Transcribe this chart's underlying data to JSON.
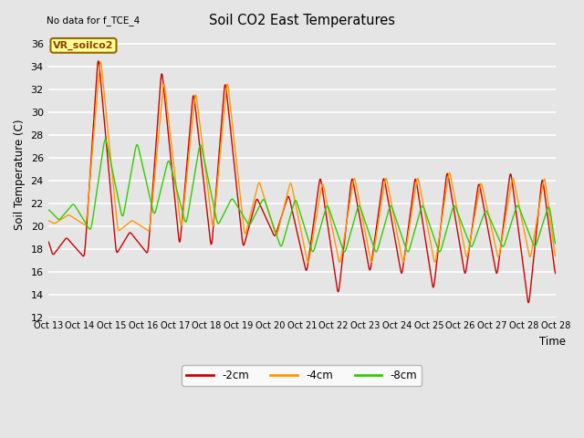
{
  "title": "Soil CO2 East Temperatures",
  "subtitle": "No data for f_TCE_4",
  "xlabel": "Time",
  "ylabel": "Soil Temperature (C)",
  "ylim": [
    12,
    37
  ],
  "yticks": [
    12,
    14,
    16,
    18,
    20,
    22,
    24,
    26,
    28,
    30,
    32,
    34,
    36
  ],
  "legend_label": "VR_soilco2",
  "series_labels": [
    "-2cm",
    "-4cm",
    "-8cm"
  ],
  "series_colors": [
    "#cc0000",
    "#ff9900",
    "#33cc00"
  ],
  "background_color": "#e5e5e5",
  "xtick_labels": [
    "Oct 13",
    "Oct 14",
    "Oct 15",
    "Oct 16",
    "Oct 17",
    "Oct 18",
    "Oct 19",
    "Oct 20",
    "Oct 21",
    "Oct 22",
    "Oct 23",
    "Oct 24",
    "Oct 25",
    "Oct 26",
    "Oct 27",
    "Oct 28"
  ],
  "n_days": 16,
  "figsize": [
    6.4,
    4.8
  ],
  "dpi": 100,
  "day_peaks_2cm": [
    35.2,
    19.5,
    34.0,
    18.0,
    32.0,
    18.0,
    33.0,
    18.0,
    22.5,
    19.0,
    24.5,
    15.8,
    24.5,
    15.5,
    24.5,
    15.8,
    24.5,
    14.2,
    25.0,
    15.5,
    24.0,
    15.5,
    25.0,
    15.5,
    24.5,
    15.5,
    24.5,
    15.5,
    24.5,
    15.5,
    24.5,
    15.5
  ],
  "day_peaks_4cm": [
    35.0,
    20.5,
    33.0,
    19.5,
    32.0,
    19.5,
    33.0,
    19.5,
    24.0,
    19.0,
    24.0,
    16.5,
    24.0,
    16.5,
    24.5,
    16.5,
    24.5,
    16.5,
    25.0,
    17.0,
    24.0,
    17.0,
    24.5,
    17.0,
    24.0,
    17.0,
    24.5,
    17.0,
    24.5,
    17.0,
    24.5,
    17.0
  ],
  "day_peaks_8cm": [
    21.5,
    17.5,
    27.5,
    19.5,
    26.0,
    20.5,
    27.5,
    19.5,
    22.5,
    20.0,
    22.5,
    18.0,
    22.0,
    18.0,
    22.0,
    17.5,
    22.0,
    17.5,
    22.0,
    17.5,
    21.5,
    18.0,
    22.0,
    17.5,
    21.5,
    18.0,
    22.0,
    18.0,
    22.0,
    18.0,
    22.0,
    18.0
  ]
}
